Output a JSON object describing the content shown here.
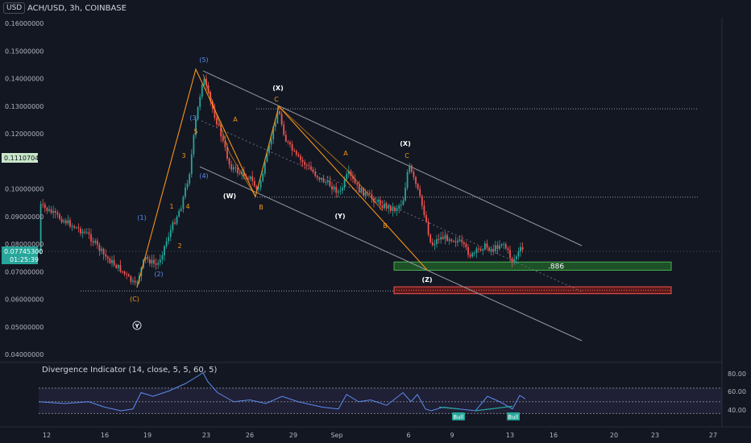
{
  "header": {
    "currency_badge": "USD",
    "title": "ACH/USD, 3h, COINBASE"
  },
  "indicator": {
    "title": "Divergence Indicator (14, close, 5, 5, 60, 5)",
    "bull_label": "Bull"
  },
  "price_axis": {
    "ticks": [
      "0.16000000",
      "0.15000000",
      "0.14000000",
      "0.13000000",
      "0.12000000",
      "0.10000000",
      "0.09000000",
      "0.08000000",
      "0.07000000",
      "0.06000000",
      "0.05000000",
      "0.04000000"
    ],
    "hidden_tick": "0.11000000",
    "marker_level": "0.11107045",
    "last_price": "0.07745300",
    "countdown": "01:25:39"
  },
  "osc_axis": {
    "ticks": [
      "80.00",
      "60.00",
      "40.00"
    ]
  },
  "x_axis": {
    "ticks": [
      "12",
      "16",
      "19",
      "23",
      "26",
      "29",
      "Sep",
      "6",
      "9",
      "13",
      "16",
      "20",
      "23",
      "27"
    ]
  },
  "wave_labels": {
    "blue": [
      "(1)",
      "(2)",
      "(3)",
      "(4)",
      "(5)"
    ],
    "orange": [
      "1",
      "2",
      "3",
      "4",
      "5",
      "A",
      "B",
      "C",
      "A",
      "B",
      "C",
      "(C)"
    ],
    "white": [
      "(W)",
      "(X)",
      "(Y)",
      "(X)",
      "(Z)",
      "Y"
    ]
  },
  "box_label": ".886",
  "colors": {
    "up": "#26a69a",
    "down": "#ef5350",
    "orange": "#f7931a",
    "blue": "#2962ff",
    "green_zone": "#1e5128",
    "red_zone": "#5c1a1a",
    "osc_band": "#7e57c2"
  },
  "chart_data": {
    "type": "candlestick",
    "symbol": "ACH/USD",
    "timeframe": "3h",
    "ylim": [
      0.04,
      0.16
    ],
    "approx_close_path": [
      {
        "x": "12",
        "y": 0.09
      },
      {
        "x": "14",
        "y": 0.083
      },
      {
        "x": "16",
        "y": 0.075
      },
      {
        "x": "18",
        "y": 0.066
      },
      {
        "x": "19",
        "y": 0.075
      },
      {
        "x": "21",
        "y": 0.088
      },
      {
        "x": "22",
        "y": 0.11
      },
      {
        "x": "23",
        "y": 0.143
      },
      {
        "x": "24",
        "y": 0.125
      },
      {
        "x": "25",
        "y": 0.098
      },
      {
        "x": "26",
        "y": 0.1
      },
      {
        "x": "27",
        "y": 0.097
      },
      {
        "x": "28",
        "y": 0.129
      },
      {
        "x": "29",
        "y": 0.115
      },
      {
        "x": "31",
        "y": 0.105
      },
      {
        "x": "Sep 1",
        "y": 0.1
      },
      {
        "x": "Sep 2",
        "y": 0.108
      },
      {
        "x": "Sep 3",
        "y": 0.096
      },
      {
        "x": "Sep 4",
        "y": 0.092
      },
      {
        "x": "Sep 6",
        "y": 0.109
      },
      {
        "x": "Sep 7",
        "y": 0.087
      },
      {
        "x": "Sep 8",
        "y": 0.072
      },
      {
        "x": "Sep 10",
        "y": 0.076
      },
      {
        "x": "Sep 12",
        "y": 0.079
      },
      {
        "x": "Sep 13",
        "y": 0.0725
      },
      {
        "x": "Sep 14",
        "y": 0.0775
      }
    ],
    "levels": {
      "horizontal_top": 0.129,
      "horizontal_mid": 0.097,
      "horizontal_low": 0.063
    },
    "zones": [
      {
        "label": ".886",
        "from": 0.0705,
        "to": 0.0735,
        "color": "green"
      },
      {
        "label": "",
        "from": 0.062,
        "to": 0.0645,
        "color": "red"
      }
    ],
    "oscillator": {
      "ylim": [
        30,
        85
      ],
      "band": [
        37,
        65
      ],
      "midline": 50
    }
  }
}
